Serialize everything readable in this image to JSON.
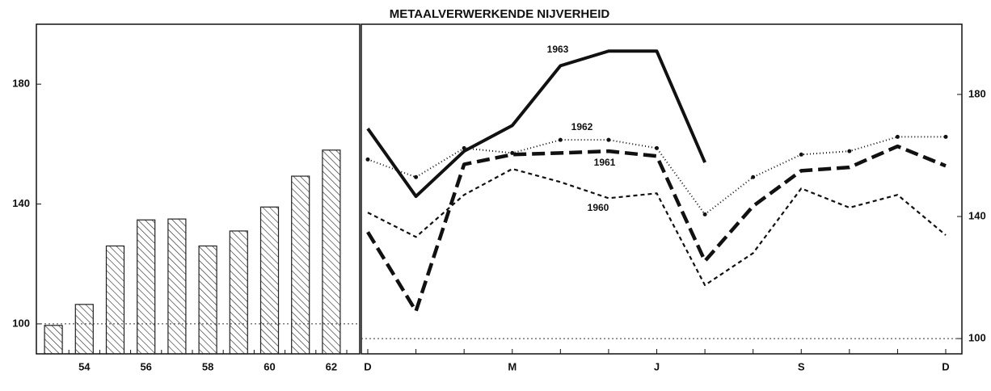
{
  "title": "METAALVERWERKENDE NIJVERHEID",
  "chart_data": [
    {
      "type": "bar",
      "categories": [
        null,
        "54",
        null,
        "56",
        null,
        "58",
        null,
        "60",
        null,
        "62"
      ],
      "values": [
        99.5,
        106.5,
        126,
        134.7,
        135,
        126,
        131,
        139,
        149.3,
        158
      ],
      "color": "#222222",
      "hatch": true,
      "ylim": [
        90,
        200
      ],
      "yticks": [
        100,
        140,
        180
      ],
      "reference_line": 100
    },
    {
      "type": "line",
      "categories": [
        "D",
        null,
        null,
        "M",
        null,
        null,
        "J",
        null,
        null,
        "S",
        null,
        null,
        "D"
      ],
      "series": [
        {
          "name": "1963",
          "color": "#111111",
          "line_style": "solid",
          "values": [
            168.8,
            146.6,
            161.4,
            169.8,
            189.4,
            194.2,
            194.2,
            157.7,
            null,
            null,
            null,
            null,
            null
          ]
        },
        {
          "name": "1962",
          "color": "#111111",
          "line_style": "dotted-markers",
          "values": [
            158.7,
            152.9,
            162.4,
            160.8,
            165.1,
            165.1,
            162.4,
            140.7,
            152.9,
            160.3,
            161.4,
            166.1,
            166.1
          ]
        },
        {
          "name": "1961",
          "color": "#111111",
          "line_style": "dashed",
          "values": [
            134.9,
            109,
            157.1,
            160.3,
            160.8,
            161.4,
            159.8,
            125.4,
            143.4,
            155,
            156.1,
            163,
            156.6
          ]
        },
        {
          "name": "1960",
          "color": "#111111",
          "line_style": "short-dashed",
          "values": [
            141.3,
            133.3,
            147.1,
            155.6,
            151.3,
            146,
            147.6,
            117.5,
            128,
            149.2,
            142.9,
            147.1,
            133.9
          ]
        }
      ],
      "ylim": [
        95,
        203
      ],
      "yticks": [
        100,
        140,
        180
      ],
      "y_axis_side": "right",
      "reference_line": 100
    }
  ]
}
